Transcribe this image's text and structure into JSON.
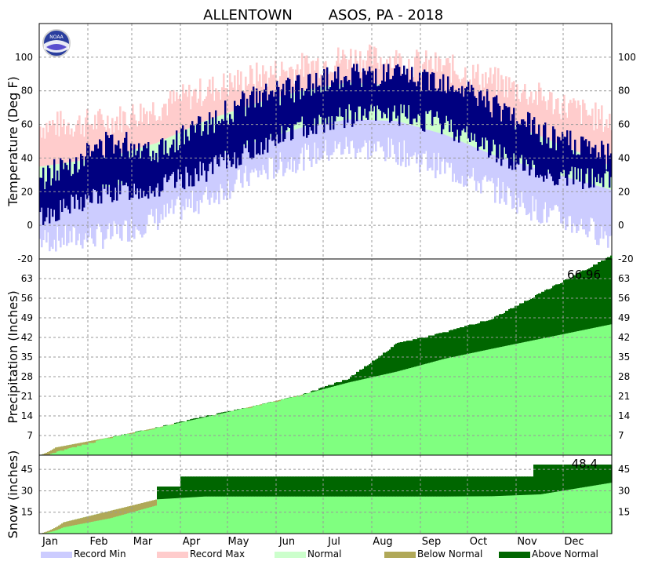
{
  "title_left": "ALLENTOWN",
  "title_right": "ASOS, PA - 2018",
  "logo_text": "NOAA",
  "colors": {
    "record_min": "#ccccff",
    "record_max": "#ffcccc",
    "normal": "#ccffcc",
    "observed": "#000080",
    "below_normal": "#b0a858",
    "above_normal": "#006600",
    "normal_precip": "#80ff80"
  },
  "months": [
    "Jan",
    "Feb",
    "Mar",
    "Apr",
    "May",
    "Jun",
    "Jul",
    "Aug",
    "Sep",
    "Oct",
    "Nov",
    "Dec"
  ],
  "legend": [
    {
      "label": "Record Min",
      "color": "#ccccff"
    },
    {
      "label": "Record Max",
      "color": "#ffcccc"
    },
    {
      "label": "Normal",
      "color": "#ccffcc"
    },
    {
      "label": "Below Normal",
      "color": "#b0a858"
    },
    {
      "label": "Above Normal",
      "color": "#006600"
    }
  ],
  "chart_data": [
    {
      "type": "area",
      "name": "temperature",
      "ylabel": "Temperature (Deg F)",
      "ylim": [
        -20,
        120
      ],
      "yticks": [
        -20,
        0,
        20,
        40,
        60,
        80,
        100
      ],
      "grid": true,
      "x_months": [
        "Jan",
        "Feb",
        "Mar",
        "Apr",
        "May",
        "Jun",
        "Jul",
        "Aug",
        "Sep",
        "Oct",
        "Nov",
        "Dec"
      ],
      "series": [
        {
          "name": "Record Max",
          "values": [
            60,
            62,
            70,
            80,
            88,
            94,
            100,
            98,
            94,
            86,
            76,
            66
          ]
        },
        {
          "name": "Normal",
          "values": [
            37,
            41,
            49,
            62,
            72,
            80,
            85,
            83,
            76,
            64,
            53,
            41
          ]
        },
        {
          "name": "Normal",
          "values": [
            21,
            23,
            29,
            39,
            49,
            58,
            63,
            62,
            54,
            42,
            33,
            25
          ]
        },
        {
          "name": "Record Min",
          "values": [
            -8,
            -6,
            4,
            16,
            30,
            40,
            47,
            44,
            34,
            22,
            8,
            -2
          ]
        },
        {
          "name": "Observed",
          "values": [
            [
              10,
              35
            ],
            [
              20,
              50
            ],
            [
              22,
              45
            ],
            [
              32,
              60
            ],
            [
              45,
              75
            ],
            [
              58,
              82
            ],
            [
              65,
              90
            ],
            [
              66,
              88
            ],
            [
              60,
              85
            ],
            [
              45,
              72
            ],
            [
              30,
              55
            ],
            [
              28,
              45
            ]
          ]
        }
      ]
    },
    {
      "type": "area",
      "name": "precipitation",
      "ylabel": "Precipitation (Inches)",
      "ylim": [
        0,
        70
      ],
      "yticks": [
        7,
        14,
        21,
        28,
        35,
        42,
        49,
        56,
        63
      ],
      "grid": true,
      "total_label": "66.96",
      "x_months": [
        "Jan",
        "Feb",
        "Mar",
        "Apr",
        "May",
        "Jun",
        "Jul",
        "Aug",
        "Sep",
        "Oct",
        "Nov",
        "Dec"
      ],
      "series": [
        {
          "name": "Normal",
          "values": [
            3.3,
            6.4,
            9.8,
            13.5,
            17.4,
            21.4,
            25.9,
            29.8,
            34.4,
            38.0,
            41.5,
            45.0
          ]
        },
        {
          "name": "Observed",
          "values": [
            2.0,
            6.5,
            10.0,
            14.0,
            17.5,
            21.5,
            27.5,
            40.0,
            44.0,
            49.0,
            58.0,
            66.96
          ]
        }
      ]
    },
    {
      "type": "area",
      "name": "snow",
      "ylabel": "Snow (inches)",
      "ylim": [
        0,
        55
      ],
      "yticks": [
        15,
        30,
        45
      ],
      "grid": true,
      "total_label": "48.4",
      "x_months": [
        "Jan",
        "Feb",
        "Mar",
        "Apr",
        "May",
        "Jun",
        "Jul",
        "Aug",
        "Sep",
        "Oct",
        "Nov",
        "Dec"
      ],
      "series": [
        {
          "name": "Normal",
          "values": [
            8,
            16,
            24,
            26,
            26,
            26,
            26,
            26,
            26,
            26.2,
            27.5,
            33
          ]
        },
        {
          "name": "Observed",
          "values": [
            5,
            12,
            22,
            40,
            40,
            40,
            40,
            40,
            40,
            40,
            48.4,
            48.4
          ]
        }
      ]
    }
  ]
}
